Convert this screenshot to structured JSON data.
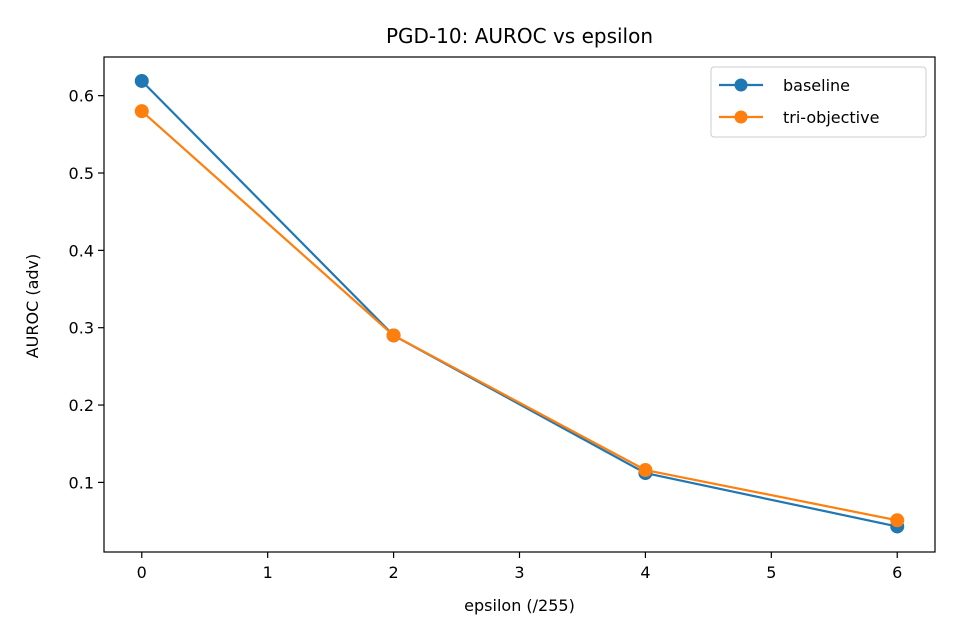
{
  "chart_data": {
    "type": "line",
    "title": "PGD-10: AUROC vs epsilon",
    "xlabel": "epsilon (/255)",
    "ylabel": "AUROC (adv)",
    "x": [
      0,
      2,
      4,
      6
    ],
    "xlim": [
      -0.3,
      6.3
    ],
    "ylim": [
      0.01,
      0.65
    ],
    "xticks": [
      0,
      1,
      2,
      3,
      4,
      5,
      6
    ],
    "yticks": [
      0.1,
      0.2,
      0.3,
      0.4,
      0.5,
      0.6
    ],
    "series": [
      {
        "name": "baseline",
        "color": "#1f77b4",
        "values": [
          0.619,
          0.29,
          0.112,
          0.043
        ]
      },
      {
        "name": "tri-objective",
        "color": "#ff7f0e",
        "values": [
          0.58,
          0.29,
          0.116,
          0.051
        ]
      }
    ],
    "grid": false,
    "legend_position": "top-right",
    "markers": "circle"
  }
}
